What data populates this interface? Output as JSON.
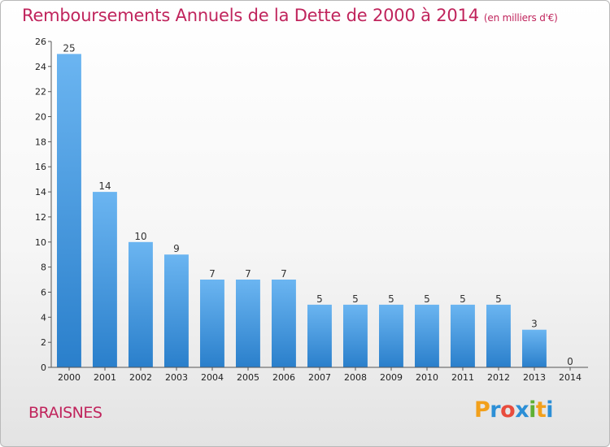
{
  "header": {
    "title": "Remboursements Annuels de la Dette de 2000 à 2014",
    "unit": "(en milliers d'€)"
  },
  "footer": {
    "commune": "BRAISNES",
    "logo_letters": [
      "P",
      "r",
      "o",
      "x",
      "i",
      "t",
      "i"
    ],
    "logo_colors": [
      "#f2a01b",
      "#2c8fd6",
      "#e84c3d",
      "#2c8fd6",
      "#5fb034",
      "#f2a01b",
      "#2c8fd6"
    ]
  },
  "chart_data": {
    "type": "bar",
    "title": "Remboursements Annuels de la Dette de 2000 à 2014",
    "xlabel": "",
    "ylabel": "",
    "categories": [
      "2000",
      "2001",
      "2002",
      "2003",
      "2004",
      "2005",
      "2006",
      "2007",
      "2008",
      "2009",
      "2010",
      "2011",
      "2012",
      "2013",
      "2014"
    ],
    "values": [
      25,
      14,
      10,
      9,
      7,
      7,
      7,
      5,
      5,
      5,
      5,
      5,
      5,
      3,
      0
    ],
    "data_labels": [
      "25",
      "14",
      "10",
      "9",
      "7",
      "7",
      "7",
      "5",
      "5",
      "5",
      "5",
      "5",
      "5",
      "3",
      "0"
    ],
    "ylim": [
      0,
      26
    ],
    "yticks": [
      "0",
      "2",
      "4",
      "6",
      "8",
      "10",
      "12",
      "14",
      "16",
      "18",
      "20",
      "22",
      "24",
      "26"
    ],
    "grid": false,
    "bar_color": "#3a8fd8"
  }
}
